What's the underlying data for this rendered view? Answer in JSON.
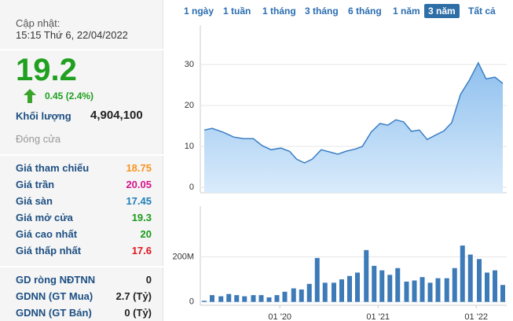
{
  "header": {
    "update_label": "Cập nhật:",
    "timestamp": "15:15 Thứ 6, 22/04/2022"
  },
  "price": {
    "value": "19.2",
    "change": "0.45 (2.4%)"
  },
  "volume": {
    "label": "Khối lượng",
    "value": "4,904,100"
  },
  "status": "Đóng cửa",
  "stats": [
    {
      "label": "Giá tham chiếu",
      "value": "18.75",
      "color": "#f7941d"
    },
    {
      "label": "Giá trần",
      "value": "20.05",
      "color": "#d4148c"
    },
    {
      "label": "Giá sàn",
      "value": "17.45",
      "color": "#1f7fb8"
    },
    {
      "label": "Giá mở cửa",
      "value": "19.3",
      "color": "#1a9a1a"
    },
    {
      "label": "Giá cao nhất",
      "value": "20",
      "color": "#1a9a1a"
    },
    {
      "label": "Giá thấp nhất",
      "value": "17.6",
      "color": "#e0141c"
    }
  ],
  "foreign": [
    {
      "label": "GD ròng NĐTNN",
      "value": "0"
    },
    {
      "label": "GDNN (GT Mua)",
      "value": "2.7 (Tỷ)"
    },
    {
      "label": "GDNN (GT Bán)",
      "value": "0 (Tỷ)"
    }
  ],
  "tabs": [
    "1 ngày",
    "1 tuần",
    "1 tháng",
    "3 tháng",
    "6 tháng",
    "1 năm",
    "3 năm",
    "Tất cả"
  ],
  "selected_tab": 6,
  "chart_data": [
    {
      "type": "area",
      "color": "#3b7fc4",
      "grid": true,
      "x": [
        2019.23,
        2019.31,
        2019.42,
        2019.53,
        2019.63,
        2019.73,
        2019.82,
        2019.91,
        2020.01,
        2020.1,
        2020.17,
        2020.25,
        2020.33,
        2020.42,
        2020.5,
        2020.59,
        2020.67,
        2020.77,
        2020.84,
        2020.93,
        2021.02,
        2021.1,
        2021.18,
        2021.26,
        2021.34,
        2021.42,
        2021.5,
        2021.58,
        2021.67,
        2021.75,
        2021.84,
        2021.93,
        2022.02,
        2022.1,
        2022.19,
        2022.27
      ],
      "values": [
        14.0,
        14.4,
        13.5,
        12.3,
        11.9,
        11.9,
        10.2,
        9.2,
        9.6,
        8.8,
        6.9,
        6.0,
        6.9,
        9.2,
        8.7,
        8.1,
        8.8,
        9.4,
        10.0,
        13.5,
        15.6,
        15.2,
        16.5,
        16.0,
        13.7,
        14.0,
        11.7,
        12.7,
        13.8,
        15.8,
        22.7,
        26.2,
        30.4,
        26.5,
        26.9,
        25.4
      ],
      "xlim": [
        2019.19,
        2022.31
      ],
      "ylim": [
        -1.3,
        39.6
      ],
      "yticks": [
        0,
        10,
        20,
        30
      ]
    },
    {
      "type": "bar",
      "color": "#3d7ab8",
      "grid": true,
      "x": [
        2019.23,
        2019.31,
        2019.4,
        2019.48,
        2019.56,
        2019.64,
        2019.73,
        2019.81,
        2019.89,
        2019.97,
        2020.05,
        2020.14,
        2020.22,
        2020.3,
        2020.38,
        2020.46,
        2020.55,
        2020.63,
        2020.71,
        2020.79,
        2020.88,
        2020.96,
        2021.04,
        2021.12,
        2021.2,
        2021.29,
        2021.37,
        2021.45,
        2021.53,
        2021.61,
        2021.7,
        2021.78,
        2021.86,
        2021.94,
        2022.03,
        2022.11,
        2022.19,
        2022.27
      ],
      "values": [
        5,
        30,
        25,
        35,
        30,
        25,
        30,
        30,
        20,
        30,
        45,
        60,
        55,
        80,
        195,
        85,
        85,
        100,
        115,
        130,
        230,
        160,
        140,
        120,
        150,
        90,
        95,
        110,
        85,
        105,
        105,
        150,
        250,
        210,
        190,
        130,
        140,
        75
      ],
      "xlim": [
        2019.19,
        2022.31
      ],
      "ylim": [
        -15,
        425
      ],
      "yticks": [
        0,
        {
          "value": 200,
          "label": "200M"
        }
      ],
      "xticks": [
        {
          "value": 2020,
          "label": "01 '20"
        },
        {
          "value": 2021,
          "label": "01 '21"
        },
        {
          "value": 2022,
          "label": "01 '22"
        }
      ]
    }
  ]
}
